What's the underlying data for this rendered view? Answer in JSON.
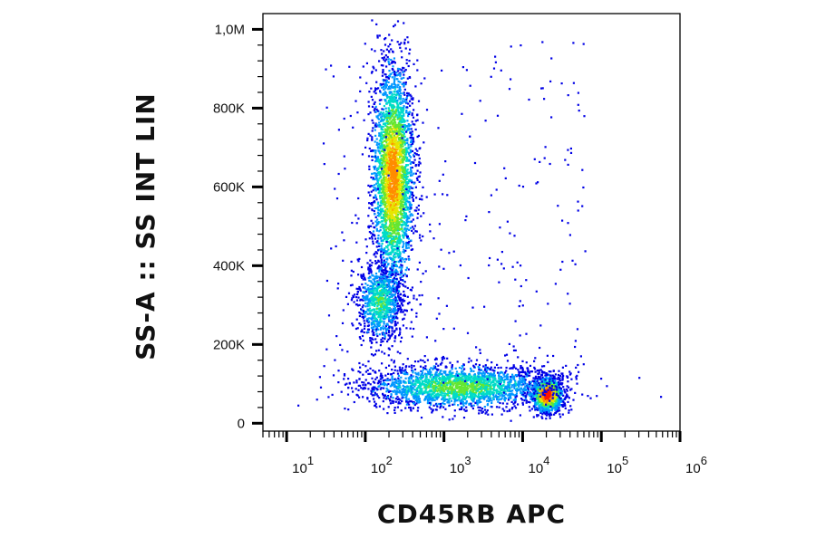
{
  "chart_data": {
    "type": "scatter",
    "xlabel": "CD45RB APC",
    "ylabel": "SS-A :: SS INT LIN",
    "x_scale": "log",
    "xlim": [
      5,
      1000000
    ],
    "ylim": [
      -20000,
      1040000
    ],
    "grid": false,
    "x_ticks": [
      {
        "value": 10,
        "base": "10",
        "exp": "1"
      },
      {
        "value": 100,
        "base": "10",
        "exp": "2"
      },
      {
        "value": 1000,
        "base": "10",
        "exp": "3"
      },
      {
        "value": 10000,
        "base": "10",
        "exp": "4"
      },
      {
        "value": 100000,
        "base": "10",
        "exp": "5"
      },
      {
        "value": 1000000,
        "base": "10",
        "exp": "6"
      }
    ],
    "y_ticks": [
      {
        "value": 0,
        "label": "0"
      },
      {
        "value": 200000,
        "label": "200K"
      },
      {
        "value": 400000,
        "label": "400K"
      },
      {
        "value": 600000,
        "label": "600K"
      },
      {
        "value": 800000,
        "label": "800K"
      },
      {
        "value": 1000000,
        "label": "1,0M"
      }
    ],
    "color_scale": [
      "#0000e6",
      "#0096ff",
      "#00dcc8",
      "#64e632",
      "#e6e600",
      "#ff8c00",
      "#ff1400"
    ],
    "populations": [
      {
        "label": "",
        "x_center": 220,
        "y_center": 630000,
        "x_spread_log": 0.13,
        "y_spread": 140000,
        "count": 3200,
        "peak_density": 0.8
      },
      {
        "label": "",
        "x_center": 150,
        "y_center": 310000,
        "x_spread_log": 0.14,
        "y_spread": 50000,
        "count": 900,
        "peak_density": 0.45
      },
      {
        "label": "",
        "x_center": 20000,
        "y_center": 75000,
        "x_spread_log": 0.1,
        "y_spread": 22000,
        "count": 1200,
        "peak_density": 1.0
      },
      {
        "label": "",
        "x_center": 1500,
        "y_center": 95000,
        "x_spread_log": 0.6,
        "y_spread": 28000,
        "count": 2200,
        "peak_density": 0.5
      }
    ]
  }
}
